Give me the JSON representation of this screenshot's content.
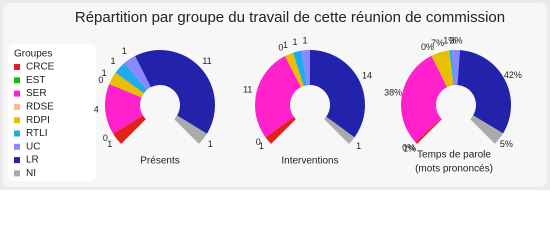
{
  "title": "Répartition par groupe du travail de cette réunion de commission",
  "legend": {
    "title": "Groupes"
  },
  "chart_data": [
    {
      "type": "pie",
      "title_lines": [
        "Présents"
      ],
      "categories": [
        "CRCE",
        "EST",
        "SER",
        "RDSE",
        "RDPI",
        "RTLI",
        "UC",
        "LR",
        "NI"
      ],
      "colors": [
        "#e3201b",
        "#10c010",
        "#ff22cc",
        "#ffbb88",
        "#e8c000",
        "#22aaee",
        "#8888ff",
        "#2222aa",
        "#aaaaaa"
      ],
      "values": [
        1,
        0,
        4,
        0,
        1,
        1,
        1,
        11,
        1
      ]
    },
    {
      "type": "pie",
      "title_lines": [
        "Interventions"
      ],
      "categories": [
        "CRCE",
        "EST",
        "SER",
        "RDSE",
        "RDPI",
        "RTLI",
        "UC",
        "LR",
        "NI"
      ],
      "colors": [
        "#e3201b",
        "#10c010",
        "#ff22cc",
        "#ffbb88",
        "#e8c000",
        "#22aaee",
        "#8888ff",
        "#2222aa",
        "#aaaaaa"
      ],
      "values": [
        1,
        0,
        11,
        0,
        1,
        1,
        1,
        14,
        1
      ]
    },
    {
      "type": "pie",
      "title_lines": [
        "Temps de parole",
        "(mots prononcés)"
      ],
      "categories": [
        "CRCE",
        "EST",
        "SER",
        "RDSE",
        "RDPI",
        "RTLI",
        "UC",
        "LR",
        "NI"
      ],
      "colors": [
        "#e3201b",
        "#10c010",
        "#ff22cc",
        "#ffbb88",
        "#e8c000",
        "#22aaee",
        "#8888ff",
        "#2222aa",
        "#aaaaaa"
      ],
      "values": [
        1,
        0,
        38,
        0,
        7,
        1,
        3,
        42,
        5
      ],
      "value_labels": [
        "1%",
        "0%",
        "38%",
        "0%",
        "7%",
        "1%",
        "3%",
        "42%",
        "5%"
      ]
    }
  ]
}
